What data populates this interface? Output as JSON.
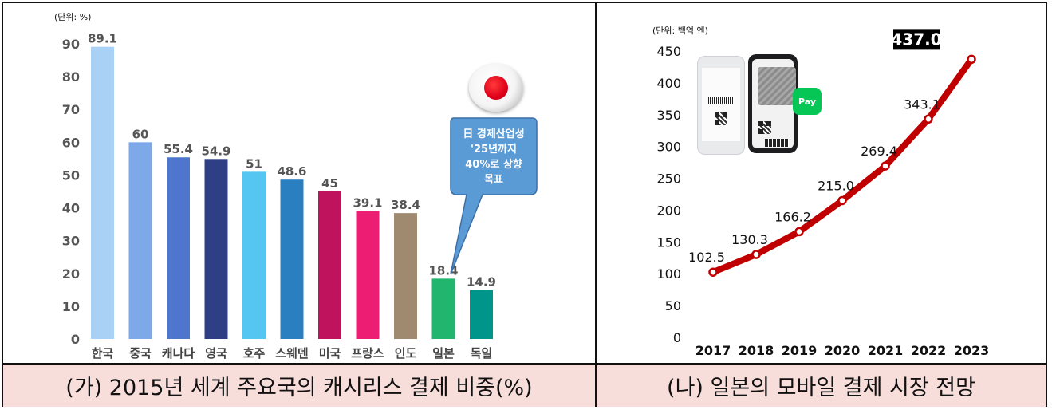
{
  "captions": {
    "left": "(가) 2015년 세계 주요국의 캐시리스 결제 비중(%)",
    "right": "(나) 일본의 모바일 결제 시장 전망"
  },
  "callout": {
    "lines": [
      "日 경제산업성",
      "'25년까지",
      "40%로 상향",
      "목표"
    ]
  },
  "phone_graphic": {
    "pay_label": "Pay"
  },
  "chart_data": [
    {
      "type": "bar",
      "unit_label": "(단위: %)",
      "categories": [
        "한국",
        "중국",
        "캐나다",
        "영국",
        "호주",
        "스웨덴",
        "미국",
        "프랑스",
        "인도",
        "일본",
        "독일"
      ],
      "values": [
        89.1,
        60,
        55.4,
        54.9,
        51,
        48.6,
        45,
        39.1,
        38.4,
        18.4,
        14.9
      ],
      "value_labels": [
        "89.1",
        "60",
        "55.4",
        "54.9",
        "51",
        "48.6",
        "45",
        "39.1",
        "38.4",
        "18.4",
        "14.9"
      ],
      "colors": [
        "#a9d0f5",
        "#7ea9e8",
        "#4d76cc",
        "#2e3f86",
        "#55c6f2",
        "#2a7fc0",
        "#c0135d",
        "#ee1d74",
        "#a08a6f",
        "#22b56e",
        "#00958a"
      ],
      "ylim": [
        0,
        90
      ],
      "yticks": [
        0,
        10,
        20,
        30,
        40,
        50,
        60,
        70,
        80,
        90
      ],
      "grid": false,
      "legend": "none"
    },
    {
      "type": "line",
      "unit_label": "(단위: 백억 엔)",
      "x": [
        "2017",
        "2018",
        "2019",
        "2020",
        "2021",
        "2022",
        "2023"
      ],
      "series": [
        {
          "values": [
            102.5,
            130.3,
            166.2,
            215.0,
            269.4,
            343.1,
            437.0
          ],
          "labels": [
            "102.5",
            "130.3",
            "166.2",
            "215.0",
            "269.4",
            "343.1",
            "437.0"
          ],
          "color": "#c00000"
        }
      ],
      "ylim": [
        0,
        450
      ],
      "yticks": [
        0,
        50,
        100,
        150,
        200,
        250,
        300,
        350,
        400,
        450
      ],
      "highlight_last": true,
      "grid": false,
      "legend": "none"
    }
  ]
}
